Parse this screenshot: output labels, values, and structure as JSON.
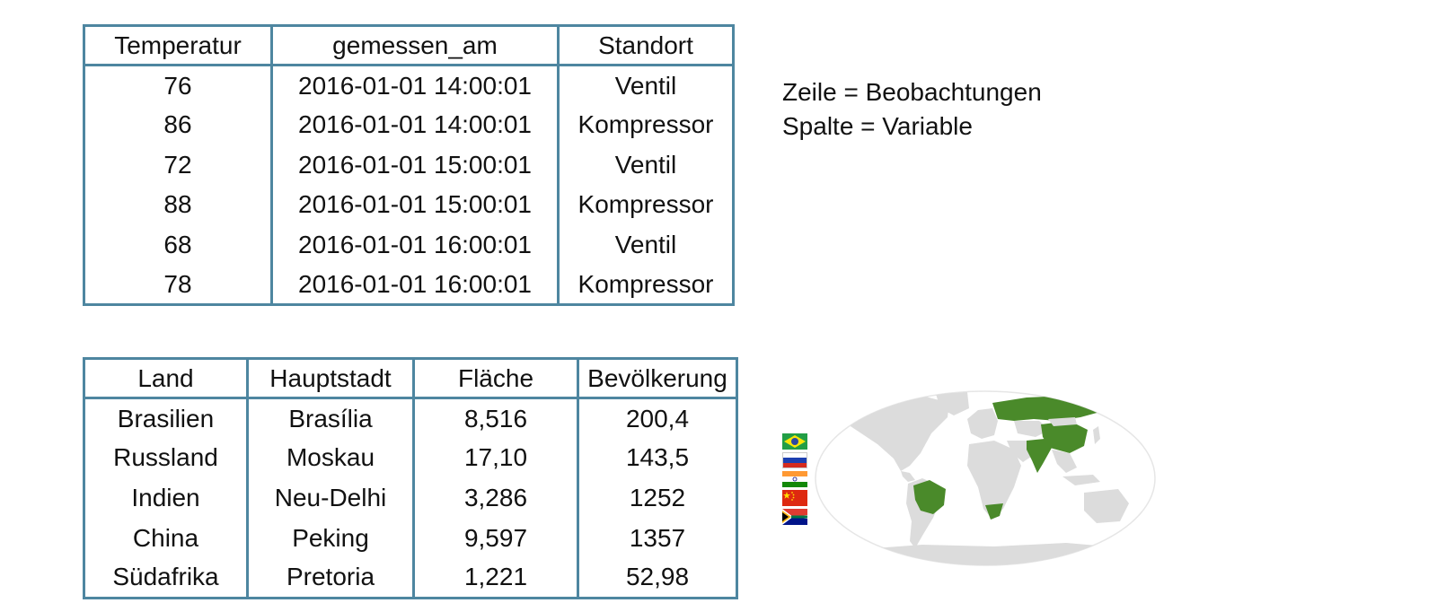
{
  "sensor_table": {
    "headers": [
      "Temperatur",
      "gemessen_am",
      "Standort"
    ],
    "rows": [
      [
        "76",
        "2016-01-01 14:00:01",
        "Ventil"
      ],
      [
        "86",
        "2016-01-01 14:00:01",
        "Kompressor"
      ],
      [
        "72",
        "2016-01-01 15:00:01",
        "Ventil"
      ],
      [
        "88",
        "2016-01-01 15:00:01",
        "Kompressor"
      ],
      [
        "68",
        "2016-01-01 16:00:01",
        "Ventil"
      ],
      [
        "78",
        "2016-01-01 16:00:01",
        "Kompressor"
      ]
    ]
  },
  "explanation": {
    "line1": "Zeile = Beobachtungen",
    "line2": "Spalte = Variable"
  },
  "brics_table": {
    "headers": [
      "Land",
      "Hauptstadt",
      "Fläche",
      "Bevölkerung"
    ],
    "rows": [
      [
        "Brasilien",
        "Brasília",
        "8,516",
        "200,4"
      ],
      [
        "Russland",
        "Moskau",
        "17,10",
        "143,5"
      ],
      [
        "Indien",
        "Neu-Delhi",
        "3,286",
        "1252"
      ],
      [
        "China",
        "Peking",
        "9,597",
        "1357"
      ],
      [
        "Südafrika",
        "Pretoria",
        "1,221",
        "52,98"
      ]
    ]
  },
  "flags": [
    "brazil-flag-icon",
    "russia-flag-icon",
    "india-flag-icon",
    "china-flag-icon",
    "south-africa-flag-icon"
  ],
  "colors": {
    "table_border": "#4e86a0",
    "map_highlight": "#4a8a2a",
    "map_land": "#dcdcdc"
  }
}
